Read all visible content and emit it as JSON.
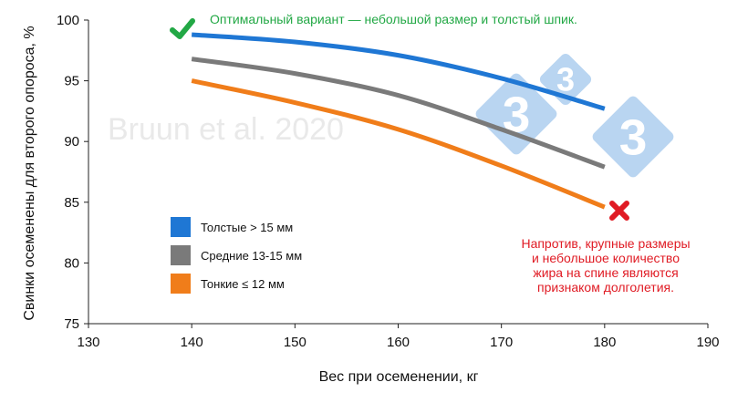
{
  "chart_data": {
    "type": "line",
    "title": "",
    "xlabel": "Вес при осеменении, кг",
    "ylabel": "Свинки осеменены для второго опороса, %",
    "xlim": [
      130,
      190
    ],
    "ylim": [
      75,
      100
    ],
    "xticks": [
      "130",
      "140",
      "150",
      "160",
      "170",
      "180",
      "190"
    ],
    "yticks": [
      "75",
      "80",
      "85",
      "90",
      "95",
      "100"
    ],
    "grid": false,
    "legend_position": "left-bottom",
    "series": [
      {
        "name": "Толстые > 15 мм",
        "color": "#1f77d4",
        "x": [
          140,
          150,
          160,
          170,
          180
        ],
        "y": [
          98.8,
          98.2,
          97.1,
          95.2,
          92.7
        ]
      },
      {
        "name": "Средние 13-15 мм",
        "color": "#7a7a7a",
        "x": [
          140,
          150,
          160,
          170,
          180
        ],
        "y": [
          96.8,
          95.6,
          93.8,
          91.0,
          87.9
        ]
      },
      {
        "name": "Тонкие ≤ 12 мм",
        "color": "#f07d1a",
        "x": [
          140,
          150,
          160,
          170,
          180
        ],
        "y": [
          95.0,
          93.2,
          91.0,
          88.0,
          84.6
        ]
      }
    ],
    "annotations": {
      "optimal": "Оптимальный вариант — небольшой размер и толстый шпик.",
      "contrary": [
        "Напротив, крупные размеры",
        "и небольшое количество",
        "жира на спине являются",
        "признаком долголетия."
      ]
    },
    "watermark": "Bruun et al. 2020",
    "logo_text": "3",
    "colors": {
      "green": "#22a845",
      "red": "#e01b24",
      "logo": "#7fb2e5"
    }
  }
}
